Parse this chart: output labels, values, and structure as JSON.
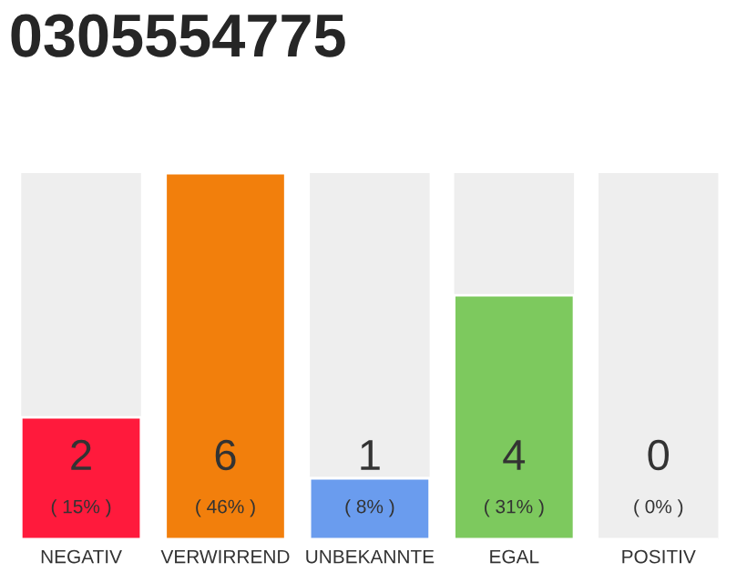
{
  "chart_data": {
    "type": "bar",
    "title": "0305554775",
    "categories": [
      "NEGATIV",
      "VERWIRREND",
      "UNBEKANNTE",
      "EGAL",
      "POSITIV"
    ],
    "values": [
      2,
      6,
      1,
      4,
      0
    ],
    "colors": [
      "#ff1a3c",
      "#f27f0c",
      "#6a9cee",
      "#7dc95e",
      null
    ],
    "value_labels": [
      "2\n( 15% )",
      "6\n( 46% )",
      "1\n( 8% )",
      "4\n( 31% )",
      "0\n( 0% )"
    ],
    "grid": false,
    "legend": false
  }
}
